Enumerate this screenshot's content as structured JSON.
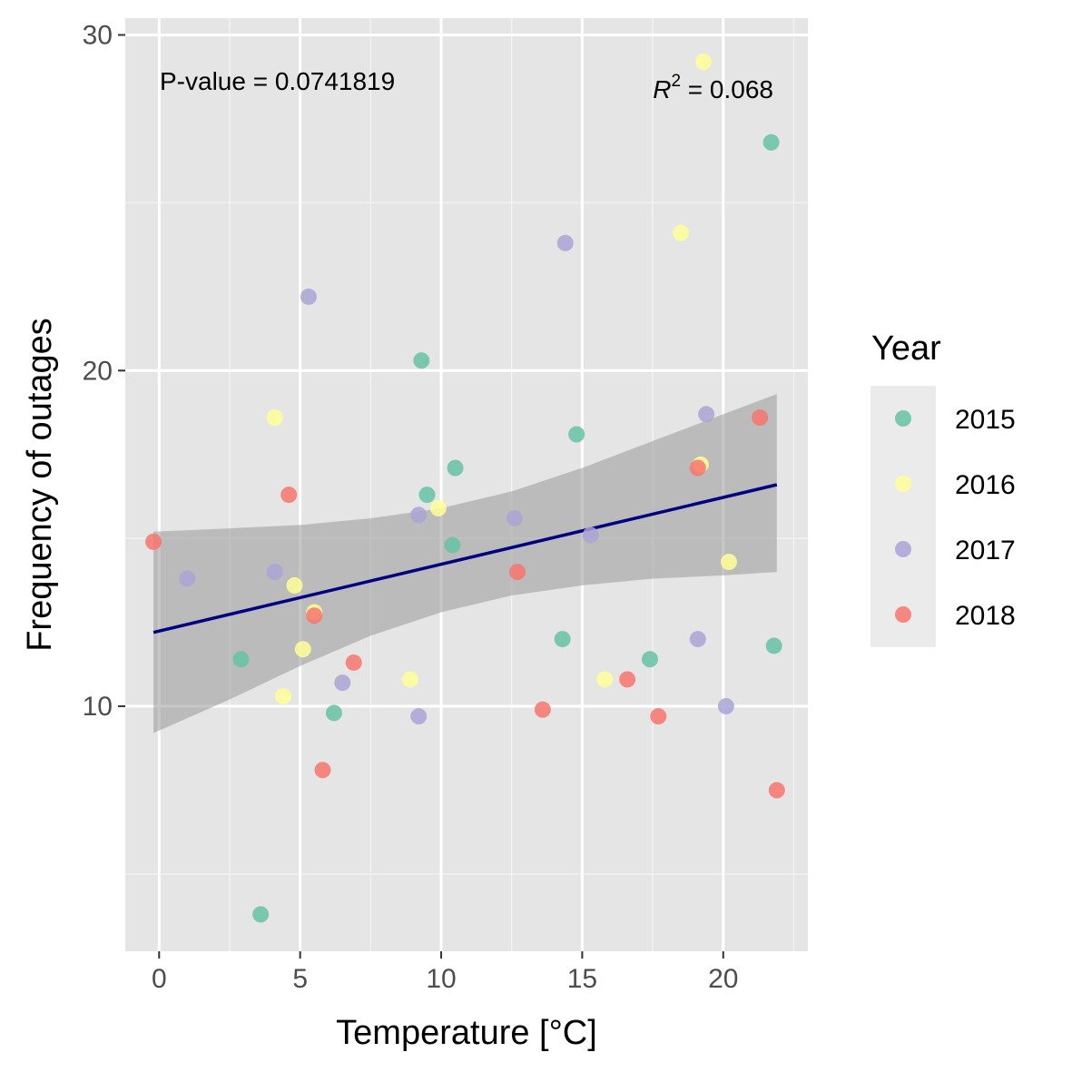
{
  "chart_data": {
    "type": "scatter",
    "xlabel": "Temperature [°C]",
    "ylabel": "Frequency of outages",
    "xlim": [
      -1.2,
      23
    ],
    "ylim": [
      2.7,
      30.5
    ],
    "xticks": [
      0,
      5,
      10,
      15,
      20
    ],
    "yticks": [
      10,
      20,
      30
    ],
    "grid": true,
    "annotations": {
      "pvalue": "P-value = 0.0741819",
      "r2_prefix": "R",
      "r2_sup": "2",
      "r2_value": " = 0.068"
    },
    "legend": {
      "title": "Year",
      "placement": "right"
    },
    "series": [
      {
        "name": "2015",
        "color": "#66c2a5",
        "points": [
          [
            21.7,
            26.8
          ],
          [
            9.3,
            20.3
          ],
          [
            14.8,
            18.1
          ],
          [
            10.5,
            17.1
          ],
          [
            9.5,
            16.3
          ],
          [
            10.4,
            14.8
          ],
          [
            2.9,
            11.4
          ],
          [
            14.3,
            12.0
          ],
          [
            17.4,
            11.4
          ],
          [
            21.8,
            11.8
          ],
          [
            6.2,
            9.8
          ],
          [
            3.6,
            3.8
          ]
        ]
      },
      {
        "name": "2016",
        "color": "#ffff99",
        "points": [
          [
            19.3,
            29.2
          ],
          [
            18.5,
            24.1
          ],
          [
            4.1,
            18.6
          ],
          [
            19.2,
            17.2
          ],
          [
            9.9,
            15.9
          ],
          [
            4.8,
            13.6
          ],
          [
            5.5,
            12.8
          ],
          [
            5.1,
            11.7
          ],
          [
            8.9,
            10.8
          ],
          [
            15.8,
            10.8
          ],
          [
            4.4,
            10.3
          ],
          [
            20.2,
            14.3
          ]
        ]
      },
      {
        "name": "2017",
        "color": "#a9a5d6",
        "points": [
          [
            14.4,
            23.8
          ],
          [
            5.3,
            22.2
          ],
          [
            19.4,
            18.7
          ],
          [
            9.2,
            15.7
          ],
          [
            12.6,
            15.6
          ],
          [
            15.3,
            15.1
          ],
          [
            1.0,
            13.8
          ],
          [
            4.1,
            14.0
          ],
          [
            6.5,
            10.7
          ],
          [
            19.1,
            12.0
          ],
          [
            9.2,
            9.7
          ],
          [
            20.1,
            10.0
          ]
        ]
      },
      {
        "name": "2018",
        "color": "#f8766d",
        "points": [
          [
            21.3,
            18.6
          ],
          [
            19.1,
            17.1
          ],
          [
            4.6,
            16.3
          ],
          [
            -0.2,
            14.9
          ],
          [
            12.7,
            14.0
          ],
          [
            5.5,
            12.7
          ],
          [
            6.9,
            11.3
          ],
          [
            16.6,
            10.8
          ],
          [
            13.6,
            9.9
          ],
          [
            17.7,
            9.7
          ],
          [
            5.8,
            8.1
          ],
          [
            21.9,
            7.5
          ]
        ]
      }
    ],
    "fit_line": {
      "color": "#000080",
      "x": [
        -0.2,
        21.9
      ],
      "y": [
        12.2,
        16.6
      ]
    },
    "confidence_band": {
      "color": "#999999",
      "x": [
        -0.2,
        2.5,
        5.0,
        7.5,
        10.0,
        12.5,
        15.0,
        17.5,
        20.0,
        21.9
      ],
      "upper": [
        15.2,
        15.3,
        15.4,
        15.6,
        15.9,
        16.4,
        17.1,
        17.9,
        18.7,
        19.3
      ],
      "lower": [
        9.2,
        10.2,
        11.2,
        12.1,
        12.8,
        13.3,
        13.6,
        13.8,
        13.9,
        14.0
      ]
    }
  }
}
